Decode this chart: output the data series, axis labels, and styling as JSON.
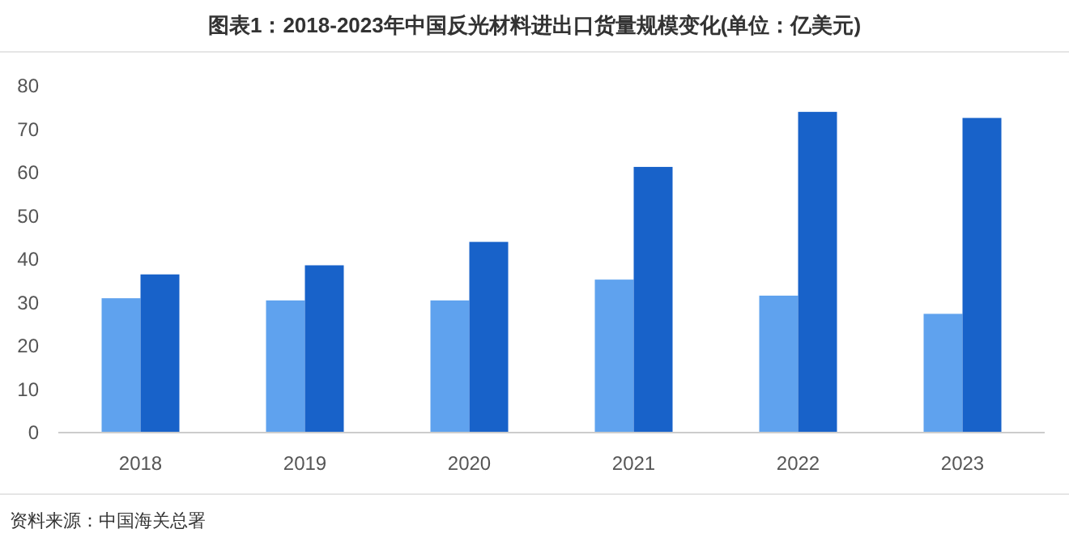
{
  "chart_data": {
    "type": "bar",
    "title": "图表1：2018-2023年中国反光材料进出口货量规模变化(单位：亿美元)",
    "categories": [
      "2018",
      "2019",
      "2020",
      "2021",
      "2022",
      "2023"
    ],
    "series": [
      {
        "color": "#5fa2ee",
        "values": [
          31,
          30.5,
          30.5,
          35.3,
          31.6,
          27.4
        ]
      },
      {
        "color": "#1862c9",
        "values": [
          36.5,
          38.6,
          44,
          61.3,
          74,
          72.6
        ]
      }
    ],
    "ylim": [
      0,
      80
    ],
    "yticks": [
      0,
      10,
      20,
      30,
      40,
      50,
      60,
      70,
      80
    ],
    "grid": false,
    "annotations": [
      "资料来源：中国海关总署"
    ]
  }
}
